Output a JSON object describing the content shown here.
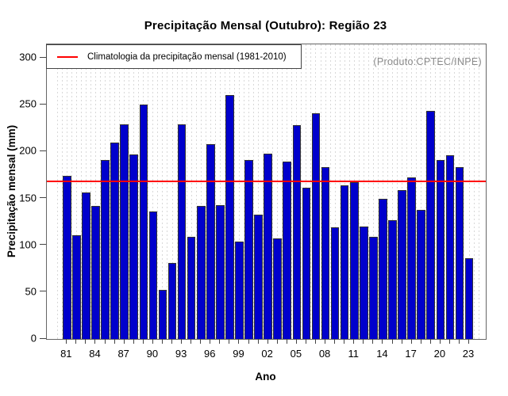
{
  "title": "Precipitação Mensal (Outubro): Região 23",
  "legend": {
    "label": "Climatologia da precipitação mensal (1981-2010)"
  },
  "watermark": "(Produto:CPTEC/INPE)",
  "axes": {
    "y_label": "Precipitação mensal (mm)",
    "x_label": "Ano",
    "y_ticks": [
      0,
      50,
      100,
      150,
      200,
      250,
      300
    ],
    "x_tick_labels": [
      "81",
      "84",
      "87",
      "90",
      "93",
      "96",
      "99",
      "02",
      "05",
      "08",
      "11",
      "14",
      "17",
      "20",
      "23"
    ],
    "x_tick_label_step": 3
  },
  "colors": {
    "bar": "#0000cc",
    "bar_border": "#333333",
    "climatology_line": "#ff0000",
    "grid": "#d8d8d8",
    "box": "#666666",
    "watermark": "#8a8a8a"
  },
  "chart_data": {
    "type": "bar",
    "title": "Precipitação Mensal (Outubro): Região 23",
    "xlabel": "Ano",
    "ylabel": "Precipitação mensal (mm)",
    "ylim": [
      0,
      300
    ],
    "grid": "vertical-dotted",
    "legend_position": "top-left",
    "legend_entries": [
      "Climatologia da precipitação mensal (1981-2010)"
    ],
    "climatology_mean": 168,
    "x": [
      1981,
      1982,
      1983,
      1984,
      1985,
      1986,
      1987,
      1988,
      1989,
      1990,
      1991,
      1992,
      1993,
      1994,
      1995,
      1996,
      1997,
      1998,
      1999,
      2000,
      2001,
      2002,
      2003,
      2004,
      2005,
      2006,
      2007,
      2008,
      2009,
      2010,
      2011,
      2012,
      2013,
      2014,
      2015,
      2016,
      2017,
      2018,
      2019,
      2020,
      2021,
      2022,
      2023
    ],
    "values": [
      174,
      111,
      156,
      142,
      191,
      210,
      229,
      197,
      250,
      136,
      52,
      81,
      229,
      109,
      142,
      208,
      143,
      260,
      104,
      191,
      133,
      198,
      107,
      189,
      228,
      161,
      241,
      183,
      119,
      164,
      167,
      120,
      109,
      150,
      127,
      159,
      172,
      138,
      243,
      191,
      196,
      183,
      86
    ]
  }
}
